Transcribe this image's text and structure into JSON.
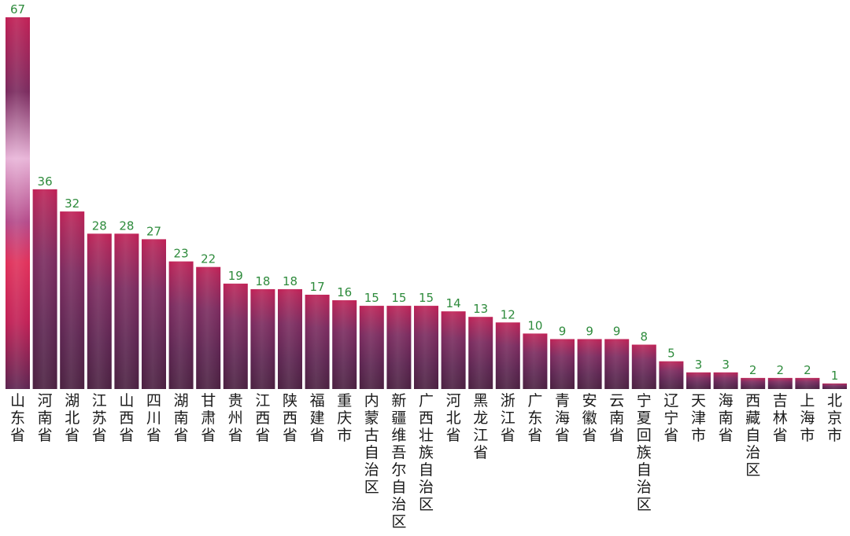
{
  "chart_data": {
    "type": "bar",
    "title": "",
    "xlabel": "",
    "ylabel": "",
    "ylim": [
      0,
      67
    ],
    "grid": false,
    "legend": "none",
    "colors": {
      "bar_top": "#c01f55",
      "bar_mid": "#7a2a5e",
      "bar_dark": "#4a2040",
      "bar_accent": "#e8b4d8",
      "value_label": "#2e8b3c",
      "category_label": "#1a1a1a"
    },
    "categories": [
      "山东省",
      "河南省",
      "湖北省",
      "江苏省",
      "山西省",
      "四川省",
      "湖南省",
      "甘肃省",
      "贵州省",
      "江西省",
      "陕西省",
      "福建省",
      "重庆市",
      "内蒙古自治区",
      "新疆维吾尔自治区",
      "广西壮族自治区",
      "河北省",
      "黑龙江省",
      "浙江省",
      "广东省",
      "青海省",
      "安徽省",
      "云南省",
      "宁夏回族自治区",
      "辽宁省",
      "天津市",
      "海南省",
      "西藏自治区",
      "吉林省",
      "上海市",
      "北京市"
    ],
    "values": [
      67,
      36,
      32,
      28,
      28,
      27,
      23,
      22,
      19,
      18,
      18,
      17,
      16,
      15,
      15,
      15,
      14,
      13,
      12,
      10,
      9,
      9,
      9,
      8,
      5,
      3,
      3,
      2,
      2,
      2,
      1
    ]
  }
}
